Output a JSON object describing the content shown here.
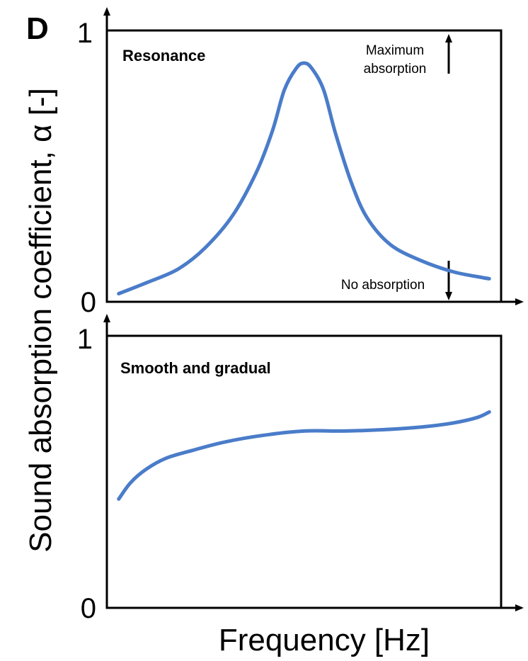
{
  "panel_label": "D",
  "ylabel": "Sound absorption coefficient, α [-]",
  "xlabel": "Frequency [Hz]",
  "colors": {
    "curve": "#4a7cc9",
    "axes": "#000000"
  },
  "chart_data": [
    {
      "type": "line",
      "title": "Resonance",
      "ylim": [
        0,
        1
      ],
      "xlim": [
        0,
        1
      ],
      "y_ticks": [
        "0",
        "1"
      ],
      "annotations": {
        "max": "Maximum absorption",
        "max_line1": "Maximum",
        "max_line2": "absorption",
        "min": "No absorption"
      },
      "series": [
        {
          "x": [
            0.03,
            0.1,
            0.18,
            0.25,
            0.32,
            0.38,
            0.42,
            0.45,
            0.48,
            0.5,
            0.52,
            0.55,
            0.58,
            0.62,
            0.66,
            0.72,
            0.8,
            0.88,
            0.95,
            0.97
          ],
          "values": [
            0.03,
            0.07,
            0.12,
            0.2,
            0.32,
            0.48,
            0.63,
            0.78,
            0.86,
            0.88,
            0.86,
            0.78,
            0.62,
            0.44,
            0.31,
            0.21,
            0.15,
            0.11,
            0.09,
            0.085
          ]
        }
      ]
    },
    {
      "type": "line",
      "title": "Smooth and gradual",
      "ylim": [
        0,
        1
      ],
      "xlim": [
        0,
        1
      ],
      "y_ticks": [
        "0",
        "1"
      ],
      "series": [
        {
          "x": [
            0.03,
            0.06,
            0.1,
            0.15,
            0.22,
            0.3,
            0.4,
            0.5,
            0.6,
            0.7,
            0.8,
            0.88,
            0.94,
            0.97
          ],
          "values": [
            0.4,
            0.46,
            0.51,
            0.55,
            0.58,
            0.61,
            0.635,
            0.65,
            0.65,
            0.655,
            0.665,
            0.68,
            0.7,
            0.72
          ]
        }
      ]
    }
  ]
}
